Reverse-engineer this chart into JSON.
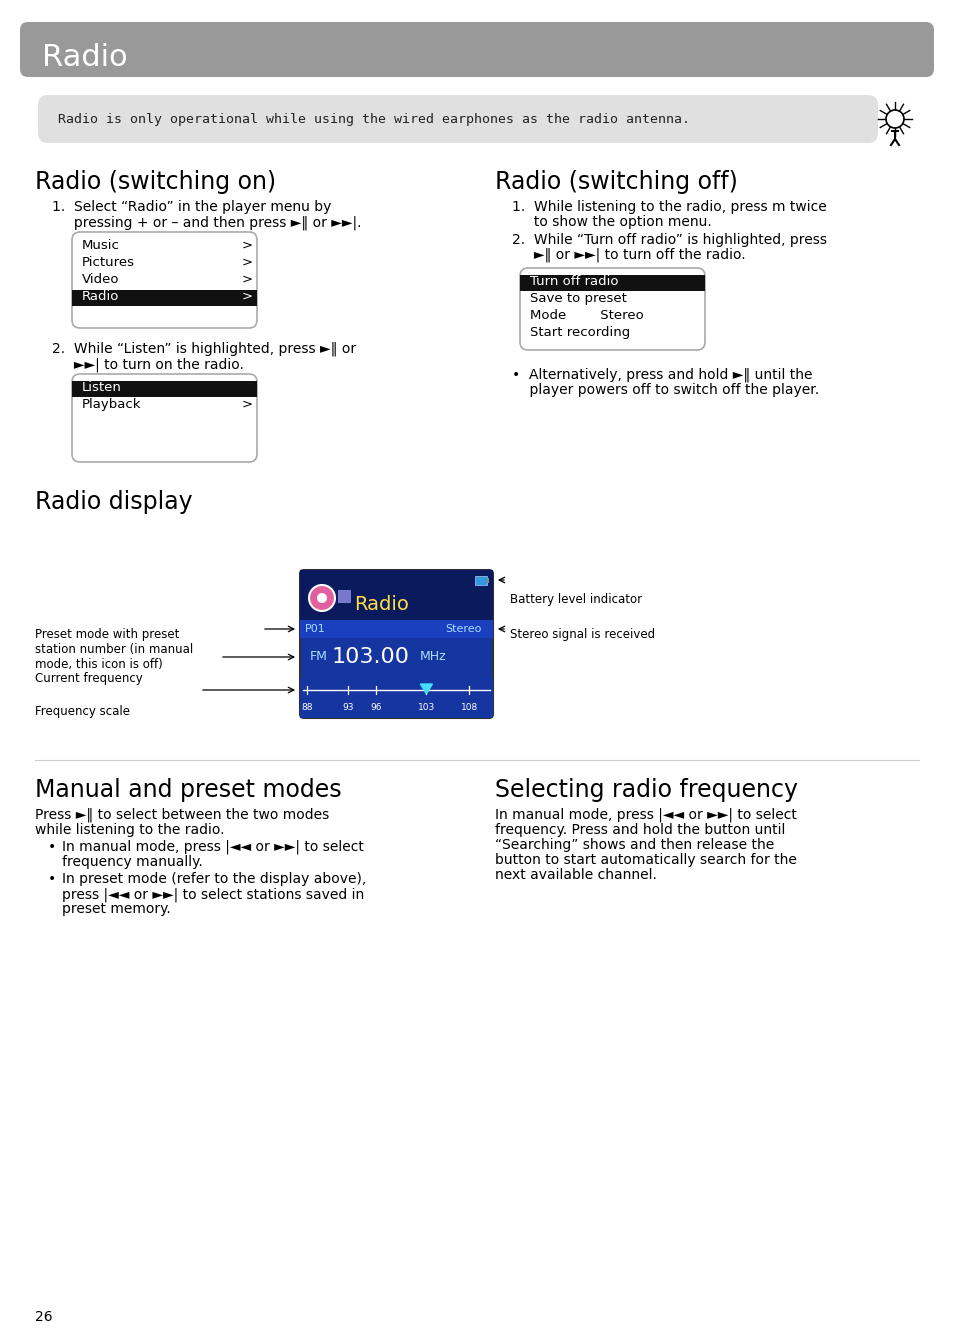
{
  "page_title": "Radio",
  "page_title_bg": "#999999",
  "note_text": "Radio is only operational while using the wired earphones as the radio antenna.",
  "note_bg": "#e0e0e0",
  "section1_title": "Radio (switching on)",
  "s1_step1a": "1.  Select “Radio” in the player menu by",
  "s1_step1b": "     pressing + or – and then press ►‖ or ►►|.",
  "s1_menu": [
    "Music",
    "Pictures",
    "Video",
    "Radio"
  ],
  "s1_menu_arrow": [
    ">",
    ">",
    ">",
    ">"
  ],
  "s1_menu_hl": 3,
  "s1_step2a": "2.  While “Listen” is highlighted, press ►‖ or",
  "s1_step2b": "     ►►| to turn on the radio.",
  "s1_menu2": [
    "Listen",
    "Playback"
  ],
  "s1_menu2_arrow": [
    "",
    ">"
  ],
  "s1_menu2_hl": 0,
  "section2_title": "Radio (switching off)",
  "s2_step1a": "1.  While listening to the radio, press m twice",
  "s2_step1b": "     to show the option menu.",
  "s2_step2a": "2.  While “Turn off radio” is highlighted, press",
  "s2_step2b": "     ►‖ or ►►| to turn off the radio.",
  "s2_menu": [
    "Turn off radio",
    "Save to preset",
    "Mode        Stereo",
    "Start recording"
  ],
  "s2_menu_hl": 0,
  "s2_bullet1": "•  Alternatively, press and hold ►‖ until the",
  "s2_bullet2": "    player powers off to switch off the player.",
  "section3_title": "Radio display",
  "lbl_left1": "Preset mode with preset\nstation number (in manual\nmode, this icon is off)",
  "lbl_left2": "Current frequency",
  "lbl_left3": "Frequency scale",
  "lbl_right1": "Battery level indicator",
  "lbl_right2": "Stereo signal is received",
  "section4_title": "Manual and preset modes",
  "s4_intro1": "Press ►‖ to select between the two modes",
  "s4_intro2": "while listening to the radio.",
  "s4_b1a": "In manual mode, press |◄◄ or ►►| to select",
  "s4_b1b": "frequency manually.",
  "s4_b2a": "In preset mode (refer to the display above),",
  "s4_b2b": "press |◄◄ or ►►| to select stations saved in",
  "s4_b2c": "preset memory.",
  "section5_title": "Selecting radio frequency",
  "s5_1": "In manual mode, press |◄◄ or ►►| to select",
  "s5_2": "frequency. Press and hold the button until",
  "s5_3": "“Searching” shows and then release the",
  "s5_4": "button to start automatically search for the",
  "s5_5": "next available channel.",
  "page_number": "26",
  "bg_color": "#ffffff"
}
